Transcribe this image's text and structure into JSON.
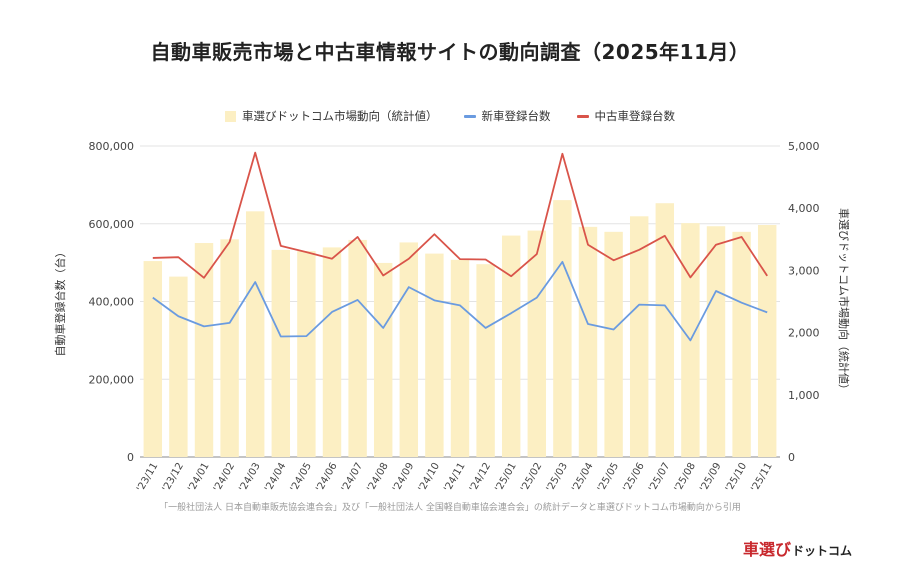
{
  "title": "自動車販売市場と中古車情報サイトの動向調査（2025年11月）",
  "legend": {
    "bar": "車選びドットコム市場動向（統計値）",
    "line1": "新車登録台数",
    "line2": "中古車登録台数"
  },
  "source": "「一般社団法人 日本自動車販売協会連合会」及び「一般社団法人 全国軽自動車協会連合会」の統計データと車選びドットコム市場動向から引用",
  "logo": {
    "main": "車選び",
    "sub": "ドットコム"
  },
  "colors": {
    "bar": "#fcefc3",
    "line1": "#6a9be0",
    "line2": "#d9544a"
  },
  "chart_data": {
    "type": "bar",
    "categories": [
      "'23/11",
      "'23/12",
      "'24/01",
      "'24/02",
      "'24/03",
      "'24/04",
      "'24/05",
      "'24/06",
      "'24/07",
      "'24/08",
      "'24/09",
      "'24/10",
      "'24/11",
      "'24/12",
      "'25/01",
      "'25/02",
      "'25/03",
      "'25/04",
      "'25/05",
      "'25/06",
      "'25/07",
      "'25/08",
      "'25/09",
      "'25/10",
      "'25/11"
    ],
    "series": [
      {
        "name": "車選びドットコム市場動向（統計値）",
        "type": "bar",
        "axis": "right",
        "values": [
          3150,
          2900,
          3440,
          3500,
          3950,
          3330,
          3310,
          3370,
          3490,
          3120,
          3450,
          3270,
          3170,
          3100,
          3560,
          3640,
          4130,
          3700,
          3620,
          3870,
          4080,
          3760,
          3710,
          3620,
          3730
        ]
      },
      {
        "name": "新車登録台数",
        "type": "line",
        "axis": "left",
        "values": [
          410000,
          362000,
          336000,
          345000,
          450000,
          310000,
          311000,
          373000,
          404000,
          332000,
          437000,
          403000,
          390000,
          332000,
          370000,
          410000,
          502000,
          342000,
          328000,
          392000,
          390000,
          300000,
          427000,
          397000,
          372000
        ]
      },
      {
        "name": "中古車登録台数",
        "type": "line",
        "axis": "left",
        "values": [
          512000,
          514000,
          461000,
          553000,
          783000,
          543000,
          527000,
          510000,
          566000,
          467000,
          510000,
          573000,
          509000,
          508000,
          465000,
          522000,
          780000,
          546000,
          506000,
          533000,
          569000,
          462000,
          546000,
          566000,
          466000
        ]
      }
    ],
    "ylabel": "自動車登録台数（台）",
    "y2label": "車選びドットコム市場動向（統計値）",
    "ylim": [
      0,
      800000
    ],
    "y2lim": [
      0,
      5000
    ],
    "yticks": [
      "0",
      "200,000",
      "400,000",
      "600,000",
      "800,000"
    ],
    "y2ticks": [
      "0",
      "1,000",
      "2,000",
      "3,000",
      "4,000",
      "5,000"
    ],
    "grid": true,
    "legend_position": "top"
  }
}
